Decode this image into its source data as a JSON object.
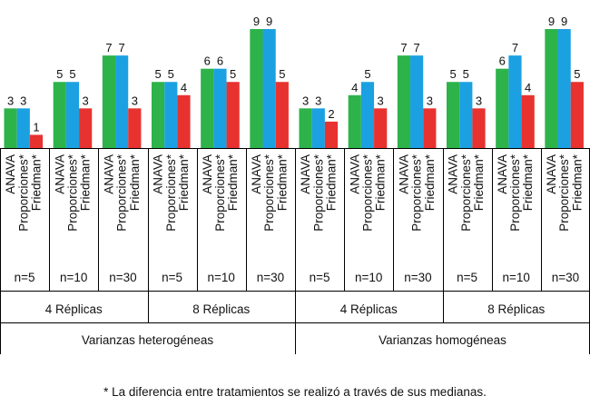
{
  "chart_data": {
    "type": "bar",
    "series": [
      {
        "name": "ANAVA",
        "color": "#2db34a"
      },
      {
        "name": "Proporciones*",
        "color": "#1ba1e2"
      },
      {
        "name": "Friedman*",
        "color": "#e8322f"
      }
    ],
    "ymax": 9,
    "groups": [
      {
        "varianza": "Varianzas heterogéneas",
        "replicas": "4 Réplicas",
        "n": "n=5",
        "values": [
          3,
          3,
          1
        ]
      },
      {
        "varianza": "Varianzas heterogéneas",
        "replicas": "4 Réplicas",
        "n": "n=10",
        "values": [
          5,
          5,
          3
        ]
      },
      {
        "varianza": "Varianzas heterogéneas",
        "replicas": "4 Réplicas",
        "n": "n=30",
        "values": [
          7,
          7,
          3
        ]
      },
      {
        "varianza": "Varianzas heterogéneas",
        "replicas": "8 Réplicas",
        "n": "n=5",
        "values": [
          5,
          5,
          4
        ]
      },
      {
        "varianza": "Varianzas heterogéneas",
        "replicas": "8 Réplicas",
        "n": "n=10",
        "values": [
          6,
          6,
          5
        ]
      },
      {
        "varianza": "Varianzas heterogéneas",
        "replicas": "8 Réplicas",
        "n": "n=30",
        "values": [
          9,
          9,
          5
        ]
      },
      {
        "varianza": "Varianzas homogéneas",
        "replicas": "4 Réplicas",
        "n": "n=5",
        "values": [
          3,
          3,
          2
        ]
      },
      {
        "varianza": "Varianzas homogéneas",
        "replicas": "4 Réplicas",
        "n": "n=10",
        "values": [
          4,
          5,
          3
        ]
      },
      {
        "varianza": "Varianzas homogéneas",
        "replicas": "4 Réplicas",
        "n": "n=30",
        "values": [
          7,
          7,
          3
        ]
      },
      {
        "varianza": "Varianzas homogéneas",
        "replicas": "8 Réplicas",
        "n": "n=5",
        "values": [
          5,
          5,
          3
        ]
      },
      {
        "varianza": "Varianzas homogéneas",
        "replicas": "8 Réplicas",
        "n": "n=10",
        "values": [
          6,
          7,
          4
        ]
      },
      {
        "varianza": "Varianzas homogéneas",
        "replicas": "8 Réplicas",
        "n": "n=30",
        "values": [
          9,
          9,
          5
        ]
      }
    ],
    "replica_labels": [
      "4 Réplicas",
      "8 Réplicas",
      "4 Réplicas",
      "8 Réplicas"
    ],
    "varianza_labels": [
      "Varianzas heterogéneas",
      "Varianzas homogéneas"
    ],
    "footnote": "* La diferencia  entre tratamientos se realizó a través  de  sus medianas."
  }
}
